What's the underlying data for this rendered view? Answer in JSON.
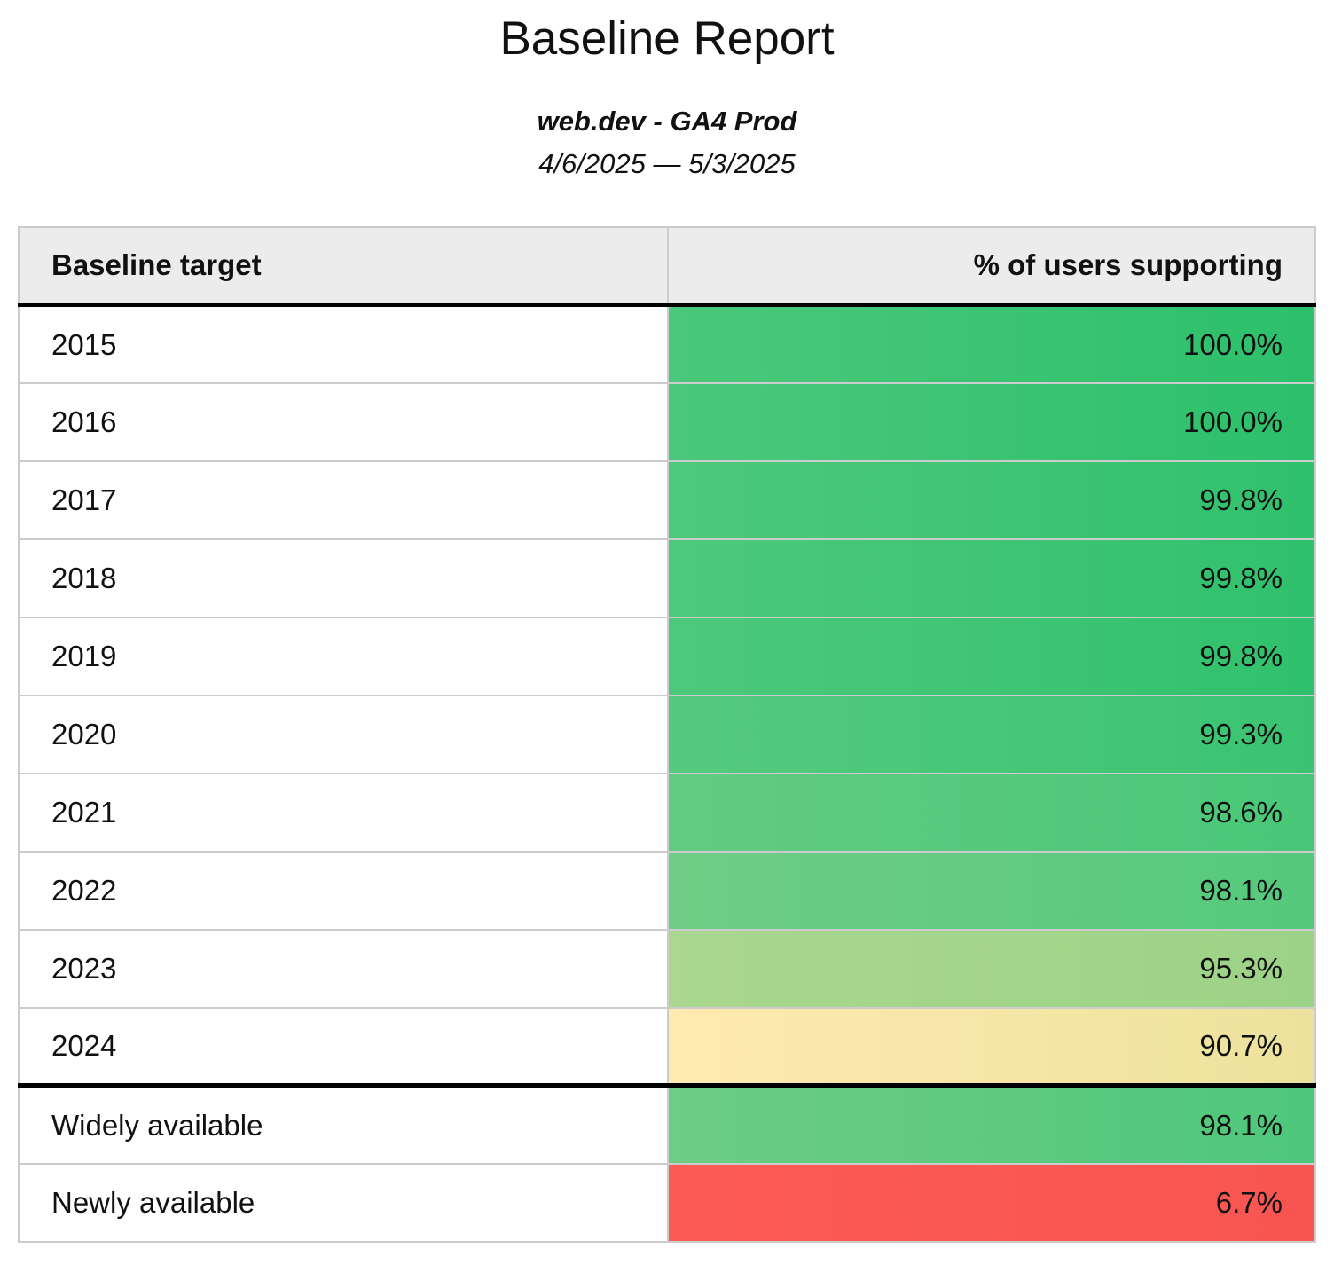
{
  "header": {
    "title": "Baseline Report",
    "subtitle": "web.dev - GA4 Prod",
    "date_range": "4/6/2025 — 5/3/2025"
  },
  "table": {
    "columns": [
      "Baseline target",
      "% of users supporting"
    ],
    "rows": [
      {
        "label": "2015",
        "value": "100.0%",
        "color_start": "#4bc87b",
        "color_end": "#2cc06b",
        "thick_border_top": false
      },
      {
        "label": "2016",
        "value": "100.0%",
        "color_start": "#4bc87b",
        "color_end": "#2cc06b",
        "thick_border_top": false
      },
      {
        "label": "2017",
        "value": "99.8%",
        "color_start": "#4ec97c",
        "color_end": "#30c16d",
        "thick_border_top": false
      },
      {
        "label": "2018",
        "value": "99.8%",
        "color_start": "#4ec97c",
        "color_end": "#30c16d",
        "thick_border_top": false
      },
      {
        "label": "2019",
        "value": "99.8%",
        "color_start": "#4ec97c",
        "color_end": "#30c16d",
        "thick_border_top": false
      },
      {
        "label": "2020",
        "value": "99.3%",
        "color_start": "#55ca7e",
        "color_end": "#3ac472",
        "thick_border_top": false
      },
      {
        "label": "2021",
        "value": "98.6%",
        "color_start": "#63cb82",
        "color_end": "#49c778",
        "thick_border_top": false
      },
      {
        "label": "2022",
        "value": "98.1%",
        "color_start": "#70cd85",
        "color_end": "#55c97c",
        "thick_border_top": false
      },
      {
        "label": "2023",
        "value": "95.3%",
        "color_start": "#abd790",
        "color_end": "#9cd287",
        "thick_border_top": false
      },
      {
        "label": "2024",
        "value": "90.7%",
        "color_start": "#ffeab0",
        "color_end": "#ece29d",
        "thick_border_top": false
      },
      {
        "label": "Widely available",
        "value": "98.1%",
        "color_start": "#6ecc84",
        "color_end": "#4ec77b",
        "thick_border_top": true
      },
      {
        "label": "Newly available",
        "value": "6.7%",
        "color_start": "#fc5a55",
        "color_end": "#f85551",
        "thick_border_top": false
      }
    ]
  },
  "chart_data": {
    "type": "table",
    "title": "Baseline Report",
    "subtitle": "web.dev - GA4 Prod",
    "date_range": "4/6/2025 — 5/3/2025",
    "columns": [
      "Baseline target",
      "% of users supporting"
    ],
    "categories": [
      "2015",
      "2016",
      "2017",
      "2018",
      "2019",
      "2020",
      "2021",
      "2022",
      "2023",
      "2024",
      "Widely available",
      "Newly available"
    ],
    "values": [
      100.0,
      100.0,
      99.8,
      99.8,
      99.8,
      99.3,
      98.6,
      98.1,
      95.3,
      90.7,
      98.1,
      6.7
    ],
    "value_unit": "%",
    "layout_hints": {
      "heatmap_scale": "red-yellow-green",
      "value_column_alignment": "right",
      "thick_divider_after_row": "2024"
    }
  }
}
